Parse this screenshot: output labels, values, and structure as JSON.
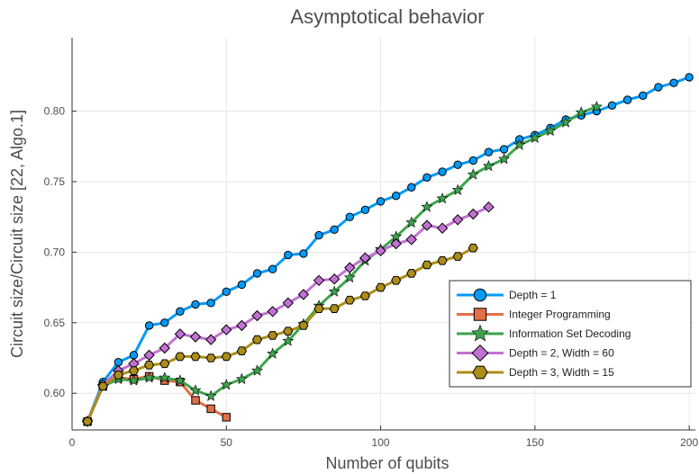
{
  "chart_data": {
    "type": "line",
    "title": "Asymptotical behavior",
    "xlabel": "Number of qubits",
    "ylabel": "Circuit size/Circuit size [22, Algo.1]",
    "xlim": [
      0,
      202
    ],
    "ylim": [
      0.574,
      0.852
    ],
    "xticks": [
      0,
      50,
      100,
      150,
      200
    ],
    "xtick_labels": [
      "0",
      "50",
      "100",
      "150",
      "200"
    ],
    "yticks": [
      0.6,
      0.65,
      0.7,
      0.75,
      0.8
    ],
    "ytick_labels": [
      "0.60",
      "0.65",
      "0.70",
      "0.75",
      "0.80"
    ],
    "grid": true,
    "legend_position": "bottom-right",
    "series": [
      {
        "name": "Depth = 1",
        "color": "#009af9",
        "marker": "circle",
        "x": [
          5,
          10,
          15,
          20,
          25,
          30,
          35,
          40,
          45,
          50,
          55,
          60,
          65,
          70,
          75,
          80,
          85,
          90,
          95,
          100,
          105,
          110,
          115,
          120,
          125,
          130,
          135,
          140,
          145,
          150,
          155,
          160,
          165,
          170,
          175,
          180,
          185,
          190,
          195,
          200
        ],
        "y": [
          0.58,
          0.608,
          0.622,
          0.627,
          0.648,
          0.65,
          0.658,
          0.663,
          0.664,
          0.672,
          0.677,
          0.685,
          0.688,
          0.698,
          0.699,
          0.712,
          0.716,
          0.725,
          0.73,
          0.736,
          0.74,
          0.746,
          0.753,
          0.757,
          0.762,
          0.765,
          0.771,
          0.773,
          0.78,
          0.783,
          0.788,
          0.794,
          0.797,
          0.8,
          0.804,
          0.808,
          0.811,
          0.817,
          0.82,
          0.824
        ]
      },
      {
        "name": "Integer Programming",
        "color": "#e26f46",
        "marker": "square",
        "x": [
          5,
          10,
          15,
          20,
          25,
          30,
          35,
          40,
          45,
          50
        ],
        "y": [
          0.58,
          0.605,
          0.611,
          0.61,
          0.612,
          0.609,
          0.608,
          0.595,
          0.589,
          0.583
        ]
      },
      {
        "name": "Information Set Decoding",
        "color": "#3da44d",
        "marker": "star",
        "x": [
          5,
          10,
          15,
          20,
          25,
          30,
          35,
          40,
          45,
          50,
          55,
          60,
          65,
          70,
          75,
          80,
          85,
          90,
          95,
          100,
          105,
          110,
          115,
          120,
          125,
          130,
          135,
          140,
          145,
          150,
          155,
          160,
          165,
          170
        ],
        "y": [
          0.58,
          0.605,
          0.61,
          0.609,
          0.611,
          0.611,
          0.609,
          0.602,
          0.598,
          0.606,
          0.61,
          0.616,
          0.628,
          0.637,
          0.649,
          0.662,
          0.672,
          0.682,
          0.694,
          0.702,
          0.711,
          0.721,
          0.732,
          0.738,
          0.744,
          0.755,
          0.761,
          0.766,
          0.776,
          0.781,
          0.786,
          0.792,
          0.799,
          0.803
        ]
      },
      {
        "name": "Depth = 2, Width = 60",
        "color": "#c271d2",
        "marker": "diamond",
        "x": [
          5,
          10,
          15,
          20,
          25,
          30,
          35,
          40,
          45,
          50,
          55,
          60,
          65,
          70,
          75,
          80,
          85,
          90,
          95,
          100,
          105,
          110,
          115,
          120,
          125,
          130,
          135
        ],
        "y": [
          0.58,
          0.606,
          0.616,
          0.621,
          0.627,
          0.632,
          0.642,
          0.64,
          0.638,
          0.645,
          0.648,
          0.655,
          0.658,
          0.664,
          0.67,
          0.68,
          0.681,
          0.689,
          0.696,
          0.701,
          0.706,
          0.709,
          0.719,
          0.717,
          0.723,
          0.727,
          0.732
        ]
      },
      {
        "name": "Depth = 3, Width = 15",
        "color": "#ac8d18",
        "marker": "hexagon",
        "x": [
          5,
          10,
          15,
          20,
          25,
          30,
          35,
          40,
          45,
          50,
          55,
          60,
          65,
          70,
          75,
          80,
          85,
          90,
          95,
          100,
          105,
          110,
          115,
          120,
          125,
          130
        ],
        "y": [
          0.58,
          0.605,
          0.613,
          0.616,
          0.62,
          0.621,
          0.626,
          0.626,
          0.625,
          0.626,
          0.63,
          0.638,
          0.641,
          0.644,
          0.648,
          0.66,
          0.66,
          0.666,
          0.669,
          0.675,
          0.68,
          0.685,
          0.691,
          0.694,
          0.697,
          0.703
        ]
      }
    ]
  }
}
